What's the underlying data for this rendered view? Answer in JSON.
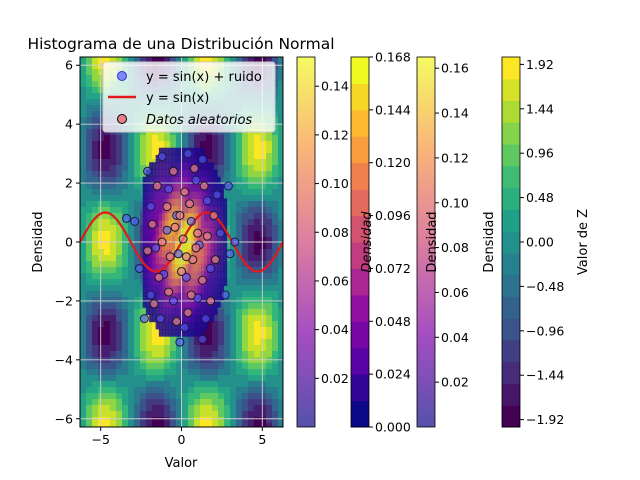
{
  "chart_data": {
    "title": "Histograma de una Distribución Normal",
    "xlabel": "Valor",
    "ylabel": "Densidad",
    "xlim": [
      -6.28,
      6.28
    ],
    "ylim": [
      -6.28,
      6.28
    ],
    "xticks": [
      -5,
      0,
      5
    ],
    "yticks": [
      -6,
      -4,
      -2,
      0,
      2,
      4,
      6
    ],
    "grid": true,
    "background": {
      "type": "contourf",
      "expression": "sin(x) * cos(y) scaled",
      "colormap": "viridis"
    },
    "histogram2d": {
      "type": "heatmap",
      "colormap": "plasma",
      "x_range": [
        -2.4,
        2.8
      ],
      "y_range": [
        -3.2,
        3.2
      ]
    },
    "series": [
      {
        "name": "y = sin(x) + ruido",
        "type": "scatter",
        "color": "#5a5aff",
        "points": [
          [
            -1.2,
            2.9
          ],
          [
            0.4,
            3.0
          ],
          [
            1.3,
            2.8
          ],
          [
            -2.1,
            2.4
          ],
          [
            -0.8,
            1.8
          ],
          [
            0.9,
            2.1
          ],
          [
            2.2,
            1.6
          ],
          [
            -1.9,
            1.2
          ],
          [
            -0.3,
            0.9
          ],
          [
            1.6,
            1.4
          ],
          [
            -2.9,
            0.7
          ],
          [
            -0.9,
            0.4
          ],
          [
            0.6,
            0.7
          ],
          [
            2.4,
            0.3
          ],
          [
            -1.6,
            -0.2
          ],
          [
            -0.2,
            -0.4
          ],
          [
            1.1,
            -0.1
          ],
          [
            3.0,
            -0.4
          ],
          [
            -2.6,
            -0.9
          ],
          [
            -1.1,
            -1.1
          ],
          [
            0.3,
            -1.2
          ],
          [
            1.8,
            -0.9
          ],
          [
            -1.9,
            -1.8
          ],
          [
            -0.5,
            -2.0
          ],
          [
            1.0,
            -1.9
          ],
          [
            2.7,
            -1.8
          ],
          [
            -1.3,
            -2.6
          ],
          [
            0.2,
            -2.9
          ],
          [
            1.5,
            -2.6
          ],
          [
            -2.3,
            -2.6
          ],
          [
            -0.1,
            -3.4
          ],
          [
            1.3,
            -3.3
          ],
          [
            -3.4,
            0.8
          ],
          [
            3.3,
            0.0
          ],
          [
            2.9,
            1.9
          ]
        ]
      },
      {
        "name": "y = sin(x)",
        "type": "line",
        "color": "#e31a1c",
        "x_range": [
          -6.28,
          6.28
        ]
      },
      {
        "name": "Datos aleatorios",
        "type": "scatter",
        "color": "#e8828a",
        "points": [
          [
            -0.5,
            2.4
          ],
          [
            0.8,
            2.5
          ],
          [
            -1.5,
            1.9
          ],
          [
            0.2,
            1.7
          ],
          [
            1.4,
            1.9
          ],
          [
            -0.9,
            1.2
          ],
          [
            0.5,
            1.3
          ],
          [
            2.0,
            0.9
          ],
          [
            -1.8,
            0.6
          ],
          [
            -0.4,
            0.5
          ],
          [
            1.0,
            0.3
          ],
          [
            -1.2,
            0.0
          ],
          [
            0.1,
            0.1
          ],
          [
            1.6,
            0.2
          ],
          [
            -2.1,
            -0.3
          ],
          [
            -0.7,
            -0.5
          ],
          [
            0.7,
            -0.6
          ],
          [
            2.1,
            -0.6
          ],
          [
            -1.4,
            -1.2
          ],
          [
            0.0,
            -1.0
          ],
          [
            1.3,
            -1.3
          ],
          [
            -0.8,
            -1.7
          ],
          [
            0.6,
            -1.8
          ],
          [
            -1.7,
            -2.1
          ],
          [
            0.4,
            -2.4
          ],
          [
            1.8,
            -2.0
          ],
          [
            -0.3,
            -2.7
          ],
          [
            0.9,
            -0.2
          ],
          [
            -0.1,
            0.9
          ],
          [
            0.3,
            -0.5
          ]
        ]
      }
    ],
    "legend": {
      "placement": "upper-right",
      "entries": [
        "y = sin(x) + ruido",
        "y = sin(x)",
        "Datos aleatorios"
      ]
    },
    "colorbars": [
      {
        "colormap": "plasma",
        "alpha": 0.7,
        "ticks": [
          "0.02",
          "0.04",
          "0.06",
          "0.08",
          "0.10",
          "0.12",
          "0.14"
        ],
        "min": 0.0,
        "max": 0.152
      },
      {
        "colormap": "plasma",
        "label": "Densidad",
        "italic_label": true,
        "ticks": [
          "0.000",
          "0.024",
          "0.048",
          "0.072",
          "0.096",
          "0.120",
          "0.144",
          "0.168"
        ],
        "min": 0.0,
        "max": 0.168
      },
      {
        "colormap": "plasma",
        "alpha": 0.7,
        "label": "Densidad",
        "ticks": [
          "0.02",
          "0.04",
          "0.06",
          "0.08",
          "0.10",
          "0.12",
          "0.14",
          "0.16"
        ],
        "min": 0.0,
        "max": 0.165
      },
      {
        "colormap": "viridis",
        "label": "Densidad",
        "ticks": [
          "-1.92",
          "-1.44",
          "-0.96",
          "-0.48",
          "0.00",
          "0.48",
          "0.96",
          "1.44",
          "1.92"
        ],
        "min": -2.0,
        "max": 2.0,
        "side_label": "Valor de Z"
      }
    ]
  }
}
